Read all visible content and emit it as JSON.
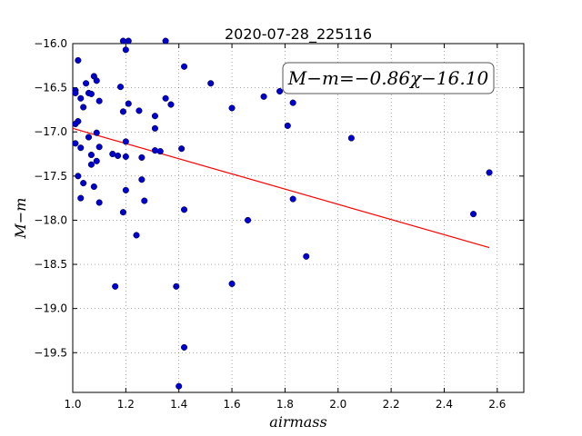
{
  "chart_data": {
    "type": "scatter",
    "title": "2020-07-28_225116",
    "xlabel": "airmass",
    "ylabel": "M−m",
    "xlim": [
      1.0,
      2.7
    ],
    "ylim": [
      -16.0,
      -19.95
    ],
    "y_inverted": true,
    "grid": true,
    "x_ticks": [
      1.0,
      1.2,
      1.4,
      1.6,
      1.8,
      2.0,
      2.2,
      2.4,
      2.6
    ],
    "y_ticks": [
      -16.0,
      -16.5,
      -17.0,
      -17.5,
      -18.0,
      -18.5,
      -19.0,
      -19.5
    ],
    "x_tick_labels": [
      "1.0",
      "1.2",
      "1.4",
      "1.6",
      "1.8",
      "2.0",
      "2.2",
      "2.4",
      "2.6"
    ],
    "y_tick_labels": [
      "−16.0",
      "−16.5",
      "−17.0",
      "−17.5",
      "−18.0",
      "−18.5",
      "−19.0",
      "−19.5"
    ],
    "annotation": "M−m=−0.86χ−16.10",
    "fit": {
      "slope": -0.86,
      "intercept": -16.1,
      "x_range": [
        1.0,
        2.57
      ],
      "color": "#ff0000"
    },
    "point_color": "#0000cc",
    "points": [
      [
        1.01,
        -16.53
      ],
      [
        1.01,
        -16.56
      ],
      [
        1.02,
        -16.19
      ],
      [
        1.02,
        -16.88
      ],
      [
        1.03,
        -16.62
      ],
      [
        1.01,
        -16.91
      ],
      [
        1.04,
        -16.72
      ],
      [
        1.05,
        -16.45
      ],
      [
        1.06,
        -16.56
      ],
      [
        1.07,
        -16.57
      ],
      [
        1.08,
        -16.37
      ],
      [
        1.09,
        -16.42
      ],
      [
        1.1,
        -16.65
      ],
      [
        1.01,
        -17.13
      ],
      [
        1.03,
        -17.18
      ],
      [
        1.06,
        -17.06
      ],
      [
        1.09,
        -17.01
      ],
      [
        1.1,
        -17.17
      ],
      [
        1.07,
        -17.26
      ],
      [
        1.09,
        -17.33
      ],
      [
        1.07,
        -17.37
      ],
      [
        1.02,
        -17.5
      ],
      [
        1.04,
        -17.58
      ],
      [
        1.08,
        -17.62
      ],
      [
        1.03,
        -17.75
      ],
      [
        1.1,
        -17.8
      ],
      [
        1.15,
        -17.25
      ],
      [
        1.17,
        -17.27
      ],
      [
        1.2,
        -17.28
      ],
      [
        1.2,
        -17.11
      ],
      [
        1.18,
        -16.49
      ],
      [
        1.19,
        -16.77
      ],
      [
        1.21,
        -16.68
      ],
      [
        1.19,
        -15.97
      ],
      [
        1.21,
        -15.97
      ],
      [
        1.2,
        -16.07
      ],
      [
        1.25,
        -16.76
      ],
      [
        1.2,
        -17.66
      ],
      [
        1.19,
        -17.91
      ],
      [
        1.26,
        -17.29
      ],
      [
        1.26,
        -17.54
      ],
      [
        1.27,
        -17.78
      ],
      [
        1.24,
        -18.17
      ],
      [
        1.16,
        -18.75
      ],
      [
        1.31,
        -16.82
      ],
      [
        1.31,
        -16.96
      ],
      [
        1.31,
        -17.21
      ],
      [
        1.33,
        -17.22
      ],
      [
        1.35,
        -16.62
      ],
      [
        1.37,
        -16.69
      ],
      [
        1.35,
        -15.97
      ],
      [
        1.42,
        -16.26
      ],
      [
        1.41,
        -17.19
      ],
      [
        1.42,
        -17.88
      ],
      [
        1.39,
        -18.75
      ],
      [
        1.42,
        -19.44
      ],
      [
        1.4,
        -19.88
      ],
      [
        1.52,
        -16.45
      ],
      [
        1.6,
        -16.73
      ],
      [
        1.66,
        -18.0
      ],
      [
        1.6,
        -18.72
      ],
      [
        1.72,
        -16.6
      ],
      [
        1.78,
        -16.54
      ],
      [
        1.83,
        -16.67
      ],
      [
        1.81,
        -16.93
      ],
      [
        1.83,
        -17.76
      ],
      [
        1.88,
        -18.41
      ],
      [
        2.05,
        -17.07
      ],
      [
        2.51,
        -17.93
      ],
      [
        2.57,
        -17.46
      ]
    ]
  }
}
